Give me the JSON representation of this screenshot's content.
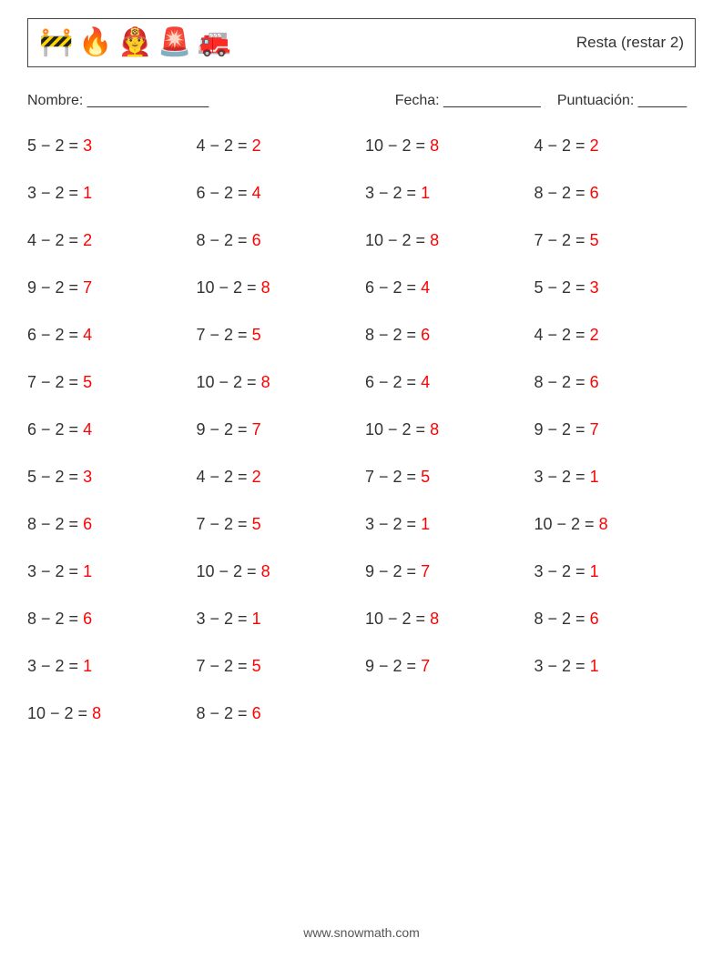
{
  "header": {
    "icons": [
      "🚧",
      "🔥",
      "👨‍🚒",
      "🚨",
      "🚒"
    ],
    "title": "Resta (restar 2)"
  },
  "info": {
    "name_label": "Nombre: _______________",
    "date_label": "Fecha: ____________",
    "score_label": "Puntuación: ______"
  },
  "style": {
    "answer_color": "#ff0000",
    "text_color": "#333333",
    "font_size_problem": 18,
    "columns": 4
  },
  "problems": [
    {
      "a": 5,
      "b": 2,
      "r": 3
    },
    {
      "a": 4,
      "b": 2,
      "r": 2
    },
    {
      "a": 10,
      "b": 2,
      "r": 8
    },
    {
      "a": 4,
      "b": 2,
      "r": 2
    },
    {
      "a": 3,
      "b": 2,
      "r": 1
    },
    {
      "a": 6,
      "b": 2,
      "r": 4
    },
    {
      "a": 3,
      "b": 2,
      "r": 1
    },
    {
      "a": 8,
      "b": 2,
      "r": 6
    },
    {
      "a": 4,
      "b": 2,
      "r": 2
    },
    {
      "a": 8,
      "b": 2,
      "r": 6
    },
    {
      "a": 10,
      "b": 2,
      "r": 8
    },
    {
      "a": 7,
      "b": 2,
      "r": 5
    },
    {
      "a": 9,
      "b": 2,
      "r": 7
    },
    {
      "a": 10,
      "b": 2,
      "r": 8
    },
    {
      "a": 6,
      "b": 2,
      "r": 4
    },
    {
      "a": 5,
      "b": 2,
      "r": 3
    },
    {
      "a": 6,
      "b": 2,
      "r": 4
    },
    {
      "a": 7,
      "b": 2,
      "r": 5
    },
    {
      "a": 8,
      "b": 2,
      "r": 6
    },
    {
      "a": 4,
      "b": 2,
      "r": 2
    },
    {
      "a": 7,
      "b": 2,
      "r": 5
    },
    {
      "a": 10,
      "b": 2,
      "r": 8
    },
    {
      "a": 6,
      "b": 2,
      "r": 4
    },
    {
      "a": 8,
      "b": 2,
      "r": 6
    },
    {
      "a": 6,
      "b": 2,
      "r": 4
    },
    {
      "a": 9,
      "b": 2,
      "r": 7
    },
    {
      "a": 10,
      "b": 2,
      "r": 8
    },
    {
      "a": 9,
      "b": 2,
      "r": 7
    },
    {
      "a": 5,
      "b": 2,
      "r": 3
    },
    {
      "a": 4,
      "b": 2,
      "r": 2
    },
    {
      "a": 7,
      "b": 2,
      "r": 5
    },
    {
      "a": 3,
      "b": 2,
      "r": 1
    },
    {
      "a": 8,
      "b": 2,
      "r": 6
    },
    {
      "a": 7,
      "b": 2,
      "r": 5
    },
    {
      "a": 3,
      "b": 2,
      "r": 1
    },
    {
      "a": 10,
      "b": 2,
      "r": 8
    },
    {
      "a": 3,
      "b": 2,
      "r": 1
    },
    {
      "a": 10,
      "b": 2,
      "r": 8
    },
    {
      "a": 9,
      "b": 2,
      "r": 7
    },
    {
      "a": 3,
      "b": 2,
      "r": 1
    },
    {
      "a": 8,
      "b": 2,
      "r": 6
    },
    {
      "a": 3,
      "b": 2,
      "r": 1
    },
    {
      "a": 10,
      "b": 2,
      "r": 8
    },
    {
      "a": 8,
      "b": 2,
      "r": 6
    },
    {
      "a": 3,
      "b": 2,
      "r": 1
    },
    {
      "a": 7,
      "b": 2,
      "r": 5
    },
    {
      "a": 9,
      "b": 2,
      "r": 7
    },
    {
      "a": 3,
      "b": 2,
      "r": 1
    },
    {
      "a": 10,
      "b": 2,
      "r": 8
    },
    {
      "a": 8,
      "b": 2,
      "r": 6
    }
  ],
  "footer": "www.snowmath.com"
}
